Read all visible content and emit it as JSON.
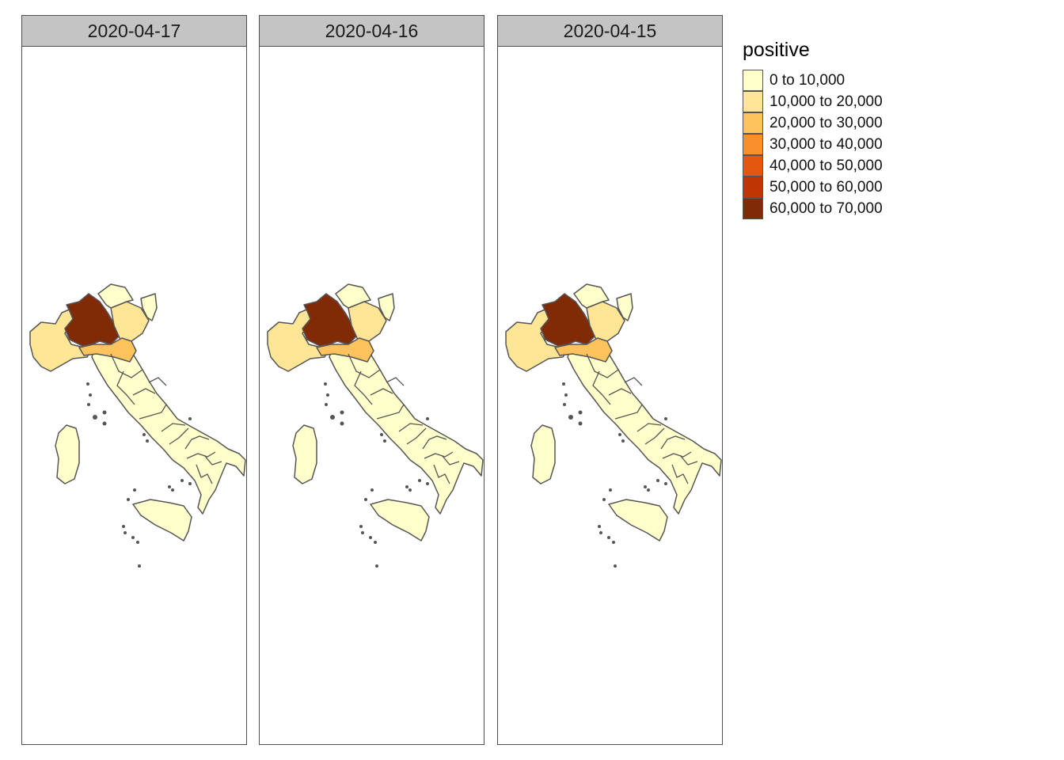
{
  "legend": {
    "title": "positive",
    "classes": [
      {
        "label": "0 to 10,000",
        "color": "#ffffcc"
      },
      {
        "label": "10,000 to 20,000",
        "color": "#ffe596"
      },
      {
        "label": "20,000 to 30,000",
        "color": "#fec35c"
      },
      {
        "label": "30,000 to 40,000",
        "color": "#f9902c"
      },
      {
        "label": "40,000 to 50,000",
        "color": "#e5560f"
      },
      {
        "label": "50,000 to 60,000",
        "color": "#bf3604"
      },
      {
        "label": "60,000 to 70,000",
        "color": "#802a06"
      }
    ]
  },
  "panels": [
    {
      "date": "2020-04-17"
    },
    {
      "date": "2020-04-16"
    },
    {
      "date": "2020-04-15"
    }
  ],
  "map_style": {
    "border_color": "#555555",
    "region_classes": {
      "lombardia": 6,
      "emilia": 2,
      "piemonte": 1,
      "veneto": 1,
      "rest": 0
    }
  }
}
